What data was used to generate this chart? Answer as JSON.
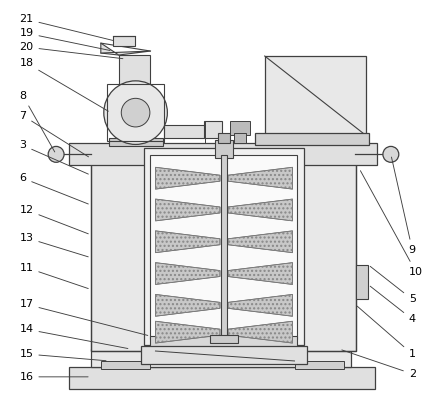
{
  "bg_color": "#ffffff",
  "line_color": "#404040",
  "label_color": "#000000",
  "figsize": [
    4.43,
    4.13
  ],
  "dpi": 100,
  "blade_hatch": ".....",
  "blade_fill": "#c8c8c8",
  "blade_edge": "#555555"
}
